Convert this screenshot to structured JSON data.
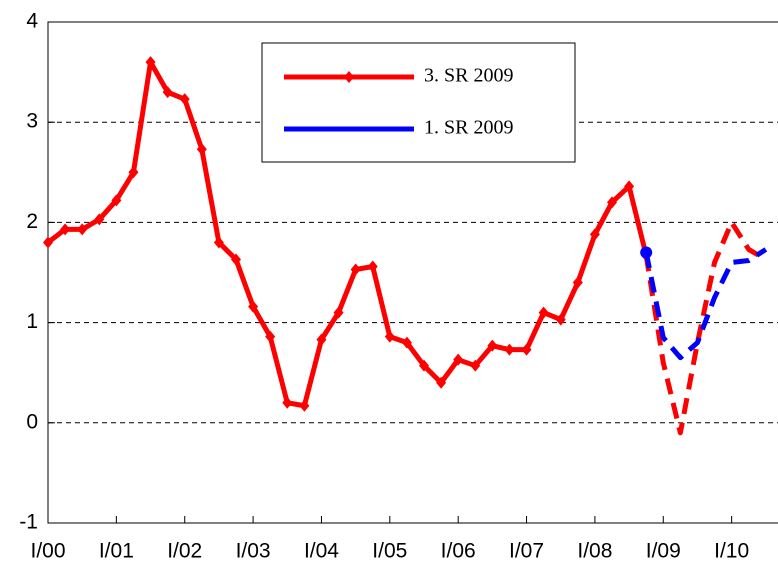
{
  "chart_data": {
    "type": "line",
    "x": [
      0,
      1,
      2,
      3,
      4,
      5,
      6,
      7,
      8,
      9,
      10,
      11,
      12,
      13,
      14,
      15,
      16,
      17,
      18,
      19,
      20,
      21,
      22,
      23,
      24,
      25,
      26,
      27,
      28,
      29,
      30,
      31,
      32,
      33,
      34,
      35,
      36,
      37,
      38,
      39,
      40,
      41,
      42
    ],
    "series": [
      {
        "name": "3. SR 2009",
        "color": "#ff0000",
        "marker": "diamond",
        "dashed_from": 35,
        "values": [
          1.8,
          1.93,
          1.93,
          2.03,
          2.22,
          2.5,
          3.6,
          3.3,
          3.23,
          2.73,
          1.8,
          1.63,
          1.16,
          0.86,
          0.2,
          0.17,
          0.83,
          1.1,
          1.53,
          1.56,
          0.86,
          0.8,
          0.57,
          0.4,
          0.63,
          0.57,
          0.77,
          0.73,
          0.73,
          1.1,
          1.03,
          1.4,
          1.88,
          2.2,
          2.36,
          1.67,
          0.6,
          -0.1,
          0.8,
          1.6,
          2.0,
          1.73,
          1.63
        ]
      },
      {
        "name": "1. SR 2009",
        "color": "#0000ff",
        "marker": "circle",
        "dashed_from": 35,
        "values": [
          null,
          null,
          null,
          null,
          null,
          null,
          null,
          null,
          null,
          null,
          null,
          null,
          null,
          null,
          null,
          null,
          null,
          null,
          null,
          null,
          null,
          null,
          null,
          null,
          null,
          null,
          null,
          null,
          null,
          null,
          null,
          null,
          null,
          null,
          null,
          1.7,
          0.85,
          0.65,
          0.8,
          1.25,
          1.6,
          1.62,
          1.73
        ]
      }
    ],
    "xlim": [
      0,
      44
    ],
    "xticks": [
      {
        "value": 0,
        "label": "I/00"
      },
      {
        "value": 4,
        "label": "I/01"
      },
      {
        "value": 8,
        "label": "I/02"
      },
      {
        "value": 12,
        "label": "I/03"
      },
      {
        "value": 16,
        "label": "I/04"
      },
      {
        "value": 20,
        "label": "I/05"
      },
      {
        "value": 24,
        "label": "I/06"
      },
      {
        "value": 28,
        "label": "I/07"
      },
      {
        "value": 32,
        "label": "I/08"
      },
      {
        "value": 36,
        "label": "I/09"
      },
      {
        "value": 40,
        "label": "I/10"
      }
    ],
    "ylim": [
      -1,
      4
    ],
    "yticks": [
      -1,
      0,
      1,
      2,
      3,
      4
    ],
    "grid": true,
    "legend": "top-center"
  }
}
